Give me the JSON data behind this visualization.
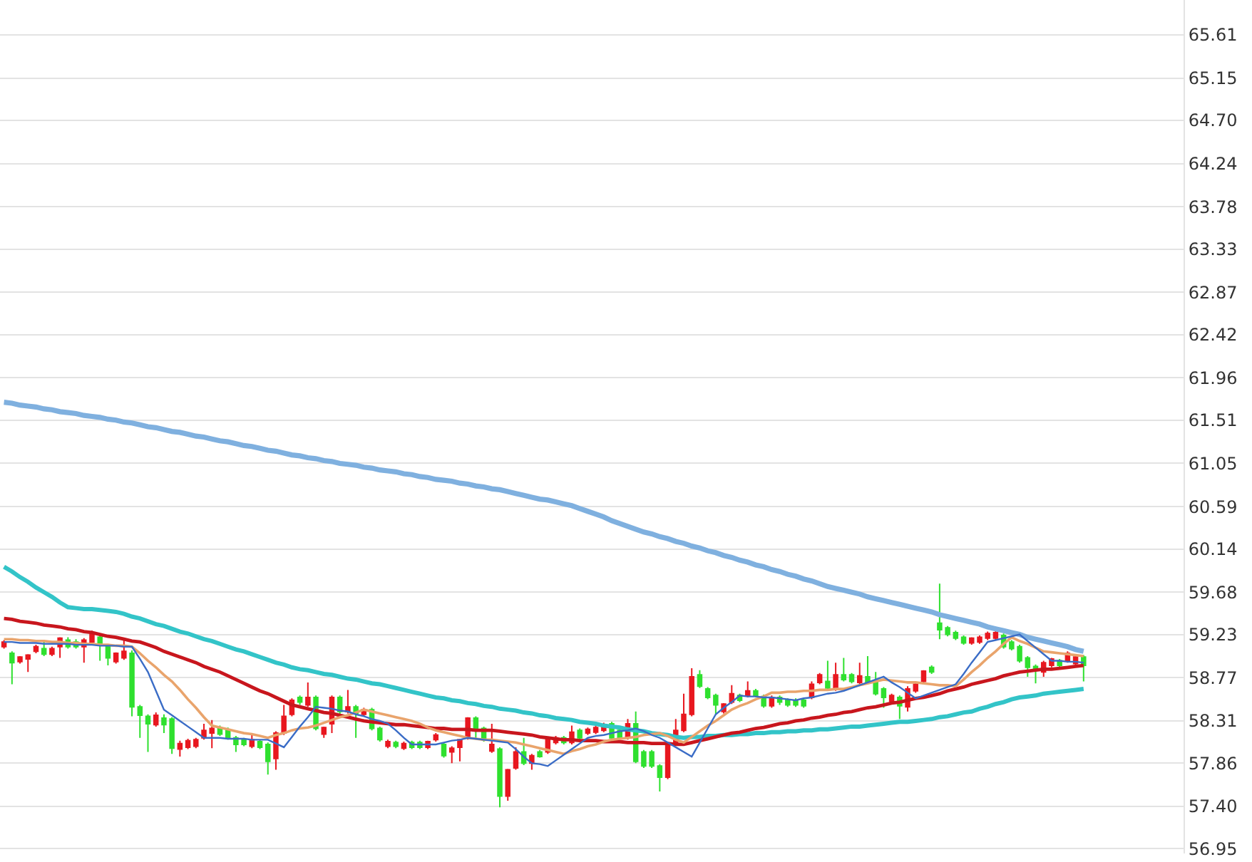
{
  "chart_data": {
    "type": "candlestick",
    "categories": [
      null,
      null,
      null,
      null,
      null,
      null,
      null,
      null,
      null,
      null,
      null,
      null,
      null,
      null,
      null,
      null,
      null,
      null,
      null,
      null,
      null,
      null,
      null,
      null,
      null,
      null,
      null,
      null,
      null,
      null,
      null,
      null,
      null,
      null,
      null,
      null,
      null,
      null,
      null,
      null,
      null,
      null,
      null,
      null,
      null,
      null,
      null,
      null,
      null,
      null,
      null,
      null,
      null,
      null,
      null,
      null,
      null,
      null,
      null,
      null,
      null,
      null,
      null,
      null,
      null,
      null,
      null,
      null,
      null,
      null,
      null,
      null,
      null,
      null,
      null,
      null,
      null,
      null,
      null,
      null,
      null,
      null,
      null,
      null,
      null,
      null,
      null,
      null,
      null,
      null,
      null,
      null,
      null,
      null,
      null,
      null,
      null,
      null,
      null,
      null,
      null,
      null,
      null,
      null,
      null,
      null,
      null,
      null,
      null,
      null,
      null,
      null,
      null,
      null,
      null,
      null,
      null,
      null,
      null,
      null,
      null,
      null,
      null,
      null,
      null,
      null,
      null,
      null,
      null,
      null,
      null,
      null,
      null,
      null,
      null,
      null
    ],
    "ohlc": [
      [
        59.1,
        59.17,
        59.08,
        59.15
      ],
      [
        59.03,
        59.05,
        58.7,
        58.93
      ],
      [
        58.94,
        59.0,
        58.92,
        58.99
      ],
      [
        58.97,
        59.02,
        58.83,
        59.01
      ],
      [
        59.05,
        59.12,
        59.03,
        59.1
      ],
      [
        59.08,
        59.17,
        59.0,
        59.02
      ],
      [
        59.02,
        59.1,
        59.0,
        59.08
      ],
      [
        59.1,
        59.2,
        58.98,
        59.19
      ],
      [
        59.17,
        59.2,
        59.08,
        59.1
      ],
      [
        59.15,
        59.18,
        59.08,
        59.1
      ],
      [
        59.1,
        59.19,
        58.93,
        59.17
      ],
      [
        59.15,
        59.27,
        59.13,
        59.23
      ],
      [
        59.2,
        59.24,
        58.95,
        59.13
      ],
      [
        59.1,
        59.12,
        58.9,
        58.98
      ],
      [
        58.94,
        59.04,
        58.92,
        59.03
      ],
      [
        58.98,
        59.18,
        58.96,
        59.05
      ],
      [
        59.03,
        59.06,
        58.36,
        58.46
      ],
      [
        58.46,
        58.48,
        58.13,
        58.37
      ],
      [
        58.36,
        58.38,
        57.98,
        58.28
      ],
      [
        58.27,
        58.4,
        58.25,
        58.37
      ],
      [
        58.34,
        58.38,
        58.18,
        58.27
      ],
      [
        58.33,
        58.35,
        57.96,
        58.02
      ],
      [
        58.01,
        58.1,
        57.93,
        58.07
      ],
      [
        58.03,
        58.12,
        58.01,
        58.1
      ],
      [
        58.04,
        58.13,
        58.02,
        58.11
      ],
      [
        58.13,
        58.28,
        58.11,
        58.21
      ],
      [
        58.18,
        58.32,
        58.02,
        58.23
      ],
      [
        58.23,
        58.26,
        58.15,
        58.17
      ],
      [
        58.21,
        58.24,
        58.11,
        58.13
      ],
      [
        58.13,
        58.15,
        57.98,
        58.06
      ],
      [
        58.11,
        58.13,
        58.04,
        58.06
      ],
      [
        58.04,
        58.18,
        58.02,
        58.11
      ],
      [
        58.09,
        58.11,
        58.01,
        58.03
      ],
      [
        58.06,
        58.08,
        57.74,
        57.88
      ],
      [
        57.91,
        58.2,
        57.79,
        58.18
      ],
      [
        58.18,
        58.48,
        58.16,
        58.36
      ],
      [
        58.38,
        58.55,
        58.36,
        58.53
      ],
      [
        58.56,
        58.58,
        58.48,
        58.51
      ],
      [
        58.48,
        58.72,
        58.46,
        58.56
      ],
      [
        58.56,
        58.58,
        58.21,
        58.23
      ],
      [
        58.17,
        58.25,
        58.13,
        58.24
      ],
      [
        58.28,
        58.58,
        58.18,
        58.56
      ],
      [
        58.56,
        58.58,
        58.38,
        58.41
      ],
      [
        58.41,
        58.64,
        58.39,
        58.46
      ],
      [
        58.46,
        58.48,
        58.13,
        58.39
      ],
      [
        58.38,
        58.45,
        58.36,
        58.43
      ],
      [
        58.43,
        58.45,
        58.21,
        58.23
      ],
      [
        58.23,
        58.25,
        58.09,
        58.11
      ],
      [
        58.04,
        58.11,
        58.02,
        58.09
      ],
      [
        58.08,
        58.1,
        58.02,
        58.04
      ],
      [
        58.02,
        58.09,
        58.0,
        58.07
      ],
      [
        58.08,
        58.1,
        58.01,
        58.03
      ],
      [
        58.08,
        58.1,
        58.01,
        58.03
      ],
      [
        58.03,
        58.1,
        58.01,
        58.09
      ],
      [
        58.11,
        58.18,
        58.09,
        58.16
      ],
      [
        58.06,
        58.08,
        57.92,
        57.94
      ],
      [
        57.98,
        58.04,
        57.86,
        58.02
      ],
      [
        58.03,
        58.12,
        57.88,
        58.11
      ],
      [
        58.13,
        58.35,
        58.11,
        58.34
      ],
      [
        58.34,
        58.36,
        58.13,
        58.23
      ],
      [
        58.23,
        58.25,
        58.09,
        58.11
      ],
      [
        57.99,
        58.28,
        57.97,
        58.06
      ],
      [
        58.01,
        58.03,
        57.39,
        57.51
      ],
      [
        57.51,
        57.8,
        57.46,
        57.79
      ],
      [
        57.81,
        58.03,
        57.79,
        57.98
      ],
      [
        57.98,
        58.13,
        57.84,
        57.86
      ],
      [
        57.86,
        57.96,
        57.79,
        57.94
      ],
      [
        57.98,
        58.0,
        57.92,
        57.93
      ],
      [
        57.98,
        58.14,
        57.96,
        58.12
      ],
      [
        58.08,
        58.15,
        58.06,
        58.13
      ],
      [
        58.13,
        58.15,
        58.06,
        58.08
      ],
      [
        58.08,
        58.26,
        58.06,
        58.19
      ],
      [
        58.21,
        58.23,
        58.11,
        58.13
      ],
      [
        58.18,
        58.24,
        58.16,
        58.22
      ],
      [
        58.19,
        58.26,
        58.17,
        58.24
      ],
      [
        58.21,
        58.29,
        58.19,
        58.27
      ],
      [
        58.28,
        58.3,
        58.11,
        58.13
      ],
      [
        58.21,
        58.23,
        58.11,
        58.13
      ],
      [
        58.13,
        58.33,
        58.11,
        58.28
      ],
      [
        58.28,
        58.41,
        57.86,
        57.88
      ],
      [
        57.98,
        58.0,
        57.81,
        57.83
      ],
      [
        57.98,
        58.0,
        57.81,
        57.83
      ],
      [
        57.83,
        57.85,
        57.56,
        57.71
      ],
      [
        57.71,
        58.08,
        57.69,
        58.06
      ],
      [
        58.08,
        58.33,
        58.06,
        58.21
      ],
      [
        58.21,
        58.6,
        58.19,
        58.38
      ],
      [
        58.38,
        58.87,
        58.36,
        58.78
      ],
      [
        58.8,
        58.85,
        58.66,
        58.68
      ],
      [
        58.65,
        58.67,
        58.54,
        58.56
      ],
      [
        58.58,
        58.6,
        58.38,
        58.48
      ],
      [
        58.41,
        58.5,
        58.39,
        58.49
      ],
      [
        58.51,
        58.69,
        58.49,
        58.6
      ],
      [
        58.58,
        58.6,
        58.51,
        58.53
      ],
      [
        58.58,
        58.73,
        58.56,
        58.63
      ],
      [
        58.63,
        58.65,
        58.56,
        58.58
      ],
      [
        58.57,
        58.59,
        58.45,
        58.47
      ],
      [
        58.47,
        58.58,
        58.45,
        58.56
      ],
      [
        58.56,
        58.58,
        58.48,
        58.51
      ],
      [
        58.53,
        58.55,
        58.46,
        58.48
      ],
      [
        58.53,
        58.55,
        58.46,
        58.48
      ],
      [
        58.53,
        58.55,
        58.45,
        58.47
      ],
      [
        58.56,
        58.73,
        58.54,
        58.7
      ],
      [
        58.72,
        58.82,
        58.7,
        58.8
      ],
      [
        58.73,
        58.95,
        58.64,
        58.66
      ],
      [
        58.65,
        58.93,
        58.63,
        58.8
      ],
      [
        58.8,
        58.98,
        58.73,
        58.75
      ],
      [
        58.8,
        58.82,
        58.71,
        58.73
      ],
      [
        58.72,
        58.93,
        58.7,
        58.79
      ],
      [
        58.78,
        59.0,
        58.7,
        58.72
      ],
      [
        58.73,
        58.83,
        58.58,
        58.6
      ],
      [
        58.65,
        58.67,
        58.45,
        58.56
      ],
      [
        58.52,
        58.6,
        58.5,
        58.58
      ],
      [
        58.56,
        58.58,
        58.33,
        58.47
      ],
      [
        58.46,
        58.68,
        58.41,
        58.65
      ],
      [
        58.63,
        58.72,
        58.61,
        58.7
      ],
      [
        58.73,
        58.85,
        58.71,
        58.84
      ],
      [
        58.88,
        58.9,
        58.81,
        58.83
      ],
      [
        59.35,
        59.77,
        59.18,
        59.28
      ],
      [
        59.3,
        59.32,
        59.21,
        59.23
      ],
      [
        59.25,
        59.27,
        59.17,
        59.19
      ],
      [
        59.2,
        59.22,
        59.12,
        59.14
      ],
      [
        59.14,
        59.2,
        59.12,
        59.19
      ],
      [
        59.15,
        59.22,
        59.13,
        59.2
      ],
      [
        59.19,
        59.26,
        59.17,
        59.24
      ],
      [
        59.19,
        59.27,
        59.17,
        59.25
      ],
      [
        59.22,
        59.24,
        59.08,
        59.1
      ],
      [
        59.15,
        59.17,
        59.06,
        59.08
      ],
      [
        59.1,
        59.12,
        58.93,
        58.95
      ],
      [
        58.98,
        59.0,
        58.78,
        58.88
      ],
      [
        58.89,
        58.91,
        58.71,
        58.85
      ],
      [
        58.83,
        58.95,
        58.78,
        58.93
      ],
      [
        58.9,
        58.98,
        58.88,
        58.97
      ],
      [
        58.95,
        58.97,
        58.88,
        58.9
      ],
      [
        58.95,
        59.05,
        58.93,
        59.03
      ],
      [
        58.92,
        59.01,
        58.9,
        58.99
      ],
      [
        58.99,
        59.01,
        58.73,
        58.9
      ]
    ],
    "colors": [
      "#e8171f",
      "#2fe02f",
      "#e8171f",
      "#e8171f",
      "#e8171f",
      "#2fe02f",
      "#e8171f",
      "#e8171f",
      "#2fe02f",
      "#2fe02f",
      "#e8171f",
      "#e8171f",
      "#2fe02f",
      "#2fe02f",
      "#e8171f",
      "#e8171f",
      "#2fe02f",
      "#2fe02f",
      "#2fe02f",
      "#e8171f",
      "#2fe02f",
      "#2fe02f",
      "#e8171f",
      "#e8171f",
      "#e8171f",
      "#e8171f",
      "#e8171f",
      "#2fe02f",
      "#2fe02f",
      "#2fe02f",
      "#2fe02f",
      "#e8171f",
      "#2fe02f",
      "#2fe02f",
      "#e8171f",
      "#e8171f",
      "#e8171f",
      "#2fe02f",
      "#e8171f",
      "#2fe02f",
      "#e8171f",
      "#e8171f",
      "#2fe02f",
      "#e8171f",
      "#2fe02f",
      "#e8171f",
      "#2fe02f",
      "#2fe02f",
      "#e8171f",
      "#2fe02f",
      "#e8171f",
      "#2fe02f",
      "#2fe02f",
      "#e8171f",
      "#e8171f",
      "#2fe02f",
      "#e8171f",
      "#e8171f",
      "#e8171f",
      "#2fe02f",
      "#2fe02f",
      "#e8171f",
      "#2fe02f",
      "#e8171f",
      "#e8171f",
      "#2fe02f",
      "#e8171f",
      "#2fe02f",
      "#e8171f",
      "#e8171f",
      "#2fe02f",
      "#e8171f",
      "#2fe02f",
      "#e8171f",
      "#e8171f",
      "#e8171f",
      "#2fe02f",
      "#2fe02f",
      "#e8171f",
      "#2fe02f",
      "#2fe02f",
      "#2fe02f",
      "#2fe02f",
      "#e8171f",
      "#e8171f",
      "#e8171f",
      "#e8171f",
      "#2fe02f",
      "#2fe02f",
      "#2fe02f",
      "#e8171f",
      "#e8171f",
      "#2fe02f",
      "#e8171f",
      "#2fe02f",
      "#2fe02f",
      "#e8171f",
      "#2fe02f",
      "#2fe02f",
      "#2fe02f",
      "#2fe02f",
      "#e8171f",
      "#e8171f",
      "#2fe02f",
      "#e8171f",
      "#2fe02f",
      "#2fe02f",
      "#e8171f",
      "#2fe02f",
      "#2fe02f",
      "#2fe02f",
      "#e8171f",
      "#2fe02f",
      "#e8171f",
      "#e8171f",
      "#e8171f",
      "#2fe02f",
      "#2fe02f",
      "#2fe02f",
      "#2fe02f",
      "#2fe02f",
      "#e8171f",
      "#e8171f",
      "#e8171f",
      "#e8171f",
      "#2fe02f",
      "#2fe02f",
      "#2fe02f",
      "#2fe02f",
      "#2fe02f",
      "#e8171f",
      "#e8171f",
      "#2fe02f",
      "#e8171f",
      "#e8171f",
      "#2fe02f"
    ],
    "series": [
      {
        "type": "line",
        "color": "#7fb0df",
        "values": [
          61.7,
          61.69,
          61.67,
          61.66,
          61.65,
          61.63,
          61.62,
          61.6,
          61.59,
          61.58,
          61.56,
          61.55,
          61.54,
          61.52,
          61.51,
          61.49,
          61.48,
          61.46,
          61.44,
          61.43,
          61.41,
          61.39,
          61.38,
          61.36,
          61.34,
          61.33,
          61.31,
          61.29,
          61.28,
          61.26,
          61.24,
          61.23,
          61.21,
          61.19,
          61.18,
          61.16,
          61.14,
          61.13,
          61.11,
          61.1,
          61.08,
          61.07,
          61.05,
          61.04,
          61.03,
          61.01,
          61.0,
          60.98,
          60.97,
          60.96,
          60.94,
          60.93,
          60.91,
          60.9,
          60.88,
          60.87,
          60.86,
          60.84,
          60.83,
          60.81,
          60.8,
          60.78,
          60.77,
          60.75,
          60.73,
          60.71,
          60.69,
          60.67,
          60.66,
          60.64,
          60.62,
          60.6,
          60.57,
          60.54,
          60.51,
          60.48,
          60.44,
          60.41,
          60.38,
          60.35,
          60.32,
          60.3,
          60.27,
          60.25,
          60.22,
          60.2,
          60.17,
          60.15,
          60.12,
          60.1,
          60.07,
          60.05,
          60.02,
          60.0,
          59.97,
          59.95,
          59.92,
          59.9,
          59.87,
          59.85,
          59.82,
          59.8,
          59.77,
          59.74,
          59.72,
          59.7,
          59.68,
          59.66,
          59.63,
          59.61,
          59.59,
          59.57,
          59.55,
          59.53,
          59.51,
          59.49,
          59.47,
          59.44,
          59.42,
          59.4,
          59.38,
          59.36,
          59.34,
          59.31,
          59.29,
          59.27,
          59.25,
          59.23,
          59.2,
          59.18,
          59.16,
          59.14,
          59.12,
          59.1,
          59.07,
          59.05
        ]
      },
      {
        "type": "line",
        "color": "#33c4c8",
        "values": [
          59.95,
          59.9,
          59.84,
          59.79,
          59.73,
          59.68,
          59.63,
          59.57,
          59.52,
          59.51,
          59.5,
          59.5,
          59.49,
          59.48,
          59.47,
          59.45,
          59.42,
          59.4,
          59.37,
          59.34,
          59.32,
          59.29,
          59.26,
          59.24,
          59.21,
          59.18,
          59.16,
          59.13,
          59.1,
          59.07,
          59.05,
          59.02,
          58.99,
          58.96,
          58.93,
          58.91,
          58.88,
          58.86,
          58.85,
          58.83,
          58.81,
          58.8,
          58.78,
          58.76,
          58.75,
          58.73,
          58.71,
          58.7,
          58.68,
          58.66,
          58.64,
          58.62,
          58.6,
          58.58,
          58.56,
          58.55,
          58.53,
          58.52,
          58.5,
          58.49,
          58.47,
          58.46,
          58.44,
          58.43,
          58.42,
          58.4,
          58.39,
          58.37,
          58.36,
          58.34,
          58.33,
          58.32,
          58.3,
          58.29,
          58.28,
          58.26,
          58.25,
          58.24,
          58.22,
          58.21,
          58.2,
          58.18,
          58.17,
          58.16,
          58.14,
          58.13,
          58.14,
          58.14,
          58.15,
          58.15,
          58.16,
          58.16,
          58.17,
          58.17,
          58.18,
          58.18,
          58.19,
          58.19,
          58.2,
          58.2,
          58.21,
          58.21,
          58.22,
          58.22,
          58.23,
          58.24,
          58.25,
          58.25,
          58.26,
          58.27,
          58.28,
          58.29,
          58.3,
          58.3,
          58.31,
          58.32,
          58.33,
          58.35,
          58.36,
          58.38,
          58.4,
          58.41,
          58.44,
          58.46,
          58.49,
          58.51,
          58.54,
          58.56,
          58.57,
          58.58,
          58.6,
          58.61,
          58.62,
          58.63,
          58.64,
          58.65
        ]
      },
      {
        "type": "line",
        "color": "#c8161d",
        "values": [
          59.4,
          59.39,
          59.37,
          59.36,
          59.35,
          59.33,
          59.32,
          59.31,
          59.29,
          59.28,
          59.26,
          59.25,
          59.23,
          59.21,
          59.2,
          59.18,
          59.16,
          59.15,
          59.12,
          59.09,
          59.05,
          59.02,
          58.99,
          58.96,
          58.93,
          58.89,
          58.86,
          58.83,
          58.79,
          58.75,
          58.71,
          58.67,
          58.63,
          58.6,
          58.56,
          58.52,
          58.48,
          58.46,
          58.44,
          58.42,
          58.4,
          58.39,
          58.37,
          58.35,
          58.33,
          58.31,
          58.3,
          58.29,
          58.28,
          58.27,
          58.27,
          58.26,
          58.25,
          58.24,
          58.23,
          58.23,
          58.22,
          58.22,
          58.22,
          58.21,
          58.21,
          58.21,
          58.2,
          58.19,
          58.18,
          58.17,
          58.16,
          58.14,
          58.13,
          58.12,
          58.11,
          58.11,
          58.1,
          58.1,
          58.1,
          58.09,
          58.09,
          58.09,
          58.08,
          58.08,
          58.08,
          58.07,
          58.07,
          58.07,
          58.06,
          58.06,
          58.08,
          58.1,
          58.12,
          58.14,
          58.16,
          58.18,
          58.19,
          58.21,
          58.23,
          58.24,
          58.26,
          58.28,
          58.29,
          58.31,
          58.32,
          58.34,
          58.35,
          58.37,
          58.38,
          58.4,
          58.41,
          58.43,
          58.45,
          58.46,
          58.48,
          58.5,
          58.51,
          58.53,
          58.55,
          58.56,
          58.58,
          58.6,
          58.63,
          58.65,
          58.67,
          58.7,
          58.72,
          58.74,
          58.76,
          58.79,
          58.81,
          58.83,
          58.84,
          58.85,
          58.86,
          58.86,
          58.87,
          58.88,
          58.89,
          58.9
        ]
      },
      {
        "type": "line",
        "color": "#e9a46c",
        "values": [
          59.18,
          59.18,
          59.17,
          59.17,
          59.16,
          59.16,
          59.15,
          59.15,
          59.14,
          59.14,
          59.13,
          59.13,
          59.12,
          59.12,
          59.11,
          59.11,
          59.1,
          59.03,
          58.95,
          58.88,
          58.8,
          58.73,
          58.64,
          58.54,
          58.45,
          58.35,
          58.26,
          58.24,
          58.22,
          58.2,
          58.18,
          58.17,
          58.15,
          58.13,
          58.16,
          58.18,
          58.21,
          58.23,
          58.24,
          58.26,
          58.29,
          58.32,
          58.35,
          58.37,
          58.4,
          58.43,
          58.41,
          58.39,
          58.37,
          58.35,
          58.33,
          58.31,
          58.28,
          58.24,
          58.21,
          58.19,
          58.17,
          58.15,
          58.13,
          58.12,
          58.11,
          58.11,
          58.1,
          58.09,
          58.08,
          58.06,
          58.04,
          58.02,
          58.0,
          57.98,
          57.96,
          57.99,
          58.01,
          58.04,
          58.06,
          58.09,
          58.11,
          58.12,
          58.13,
          58.14,
          58.16,
          58.17,
          58.18,
          58.15,
          58.11,
          58.08,
          58.14,
          58.2,
          58.26,
          58.31,
          58.37,
          58.43,
          58.47,
          58.5,
          58.54,
          58.57,
          58.61,
          58.61,
          58.62,
          58.62,
          58.63,
          58.63,
          58.64,
          58.64,
          58.65,
          58.65,
          58.67,
          58.69,
          58.71,
          58.73,
          58.75,
          58.74,
          58.73,
          58.72,
          58.72,
          58.71,
          58.7,
          58.69,
          58.69,
          58.68,
          58.75,
          58.83,
          58.9,
          58.98,
          59.05,
          59.13,
          59.2,
          59.16,
          59.13,
          59.09,
          59.05,
          59.04,
          59.03,
          59.02,
          59.01,
          59.0
        ]
      },
      {
        "type": "line",
        "color": "#3a6cc6",
        "values": [
          59.15,
          59.15,
          59.14,
          59.14,
          59.14,
          59.13,
          59.13,
          59.13,
          59.13,
          59.12,
          59.12,
          59.12,
          59.11,
          59.11,
          59.11,
          59.1,
          59.1,
          58.97,
          58.83,
          58.63,
          58.43,
          58.37,
          58.31,
          58.25,
          58.19,
          58.13,
          58.13,
          58.13,
          58.12,
          58.12,
          58.12,
          58.11,
          58.11,
          58.11,
          58.07,
          58.03,
          58.14,
          58.25,
          58.35,
          58.46,
          58.45,
          58.44,
          58.42,
          58.41,
          58.38,
          58.36,
          58.33,
          58.31,
          58.28,
          58.21,
          58.13,
          58.06,
          58.06,
          58.06,
          58.06,
          58.08,
          58.1,
          58.11,
          58.13,
          58.12,
          58.11,
          58.1,
          58.09,
          58.08,
          58.01,
          57.93,
          57.86,
          57.85,
          57.83,
          57.89,
          57.95,
          58.01,
          58.07,
          58.13,
          58.15,
          58.16,
          58.18,
          58.2,
          58.21,
          58.23,
          58.2,
          58.16,
          58.13,
          58.08,
          58.03,
          57.98,
          57.93,
          58.08,
          58.23,
          58.38,
          58.45,
          58.51,
          58.58,
          58.57,
          58.57,
          58.56,
          58.56,
          58.55,
          58.54,
          58.53,
          58.55,
          58.56,
          58.58,
          58.6,
          58.61,
          58.63,
          58.66,
          58.69,
          58.72,
          58.75,
          58.78,
          58.72,
          58.67,
          58.61,
          58.55,
          58.58,
          58.61,
          58.64,
          58.67,
          58.7,
          58.81,
          58.93,
          59.04,
          59.15,
          59.17,
          59.19,
          59.21,
          59.23,
          59.16,
          59.09,
          59.02,
          58.95,
          58.95,
          58.94,
          58.94,
          58.93
        ]
      }
    ],
    "ylim": [
      56.9,
      65.98
    ],
    "yticks": [
      56.95,
      {
        "value": 57.4,
        "label": "57.40"
      },
      57.86,
      58.31,
      58.77,
      59.23,
      59.68,
      60.14,
      60.59,
      61.05,
      61.51,
      61.96,
      62.42,
      62.87,
      63.33,
      63.78,
      64.24,
      {
        "value": 64.7,
        "label": "64.70"
      },
      65.15,
      65.61
    ],
    "grid": "y",
    "tick_labels": "y"
  }
}
